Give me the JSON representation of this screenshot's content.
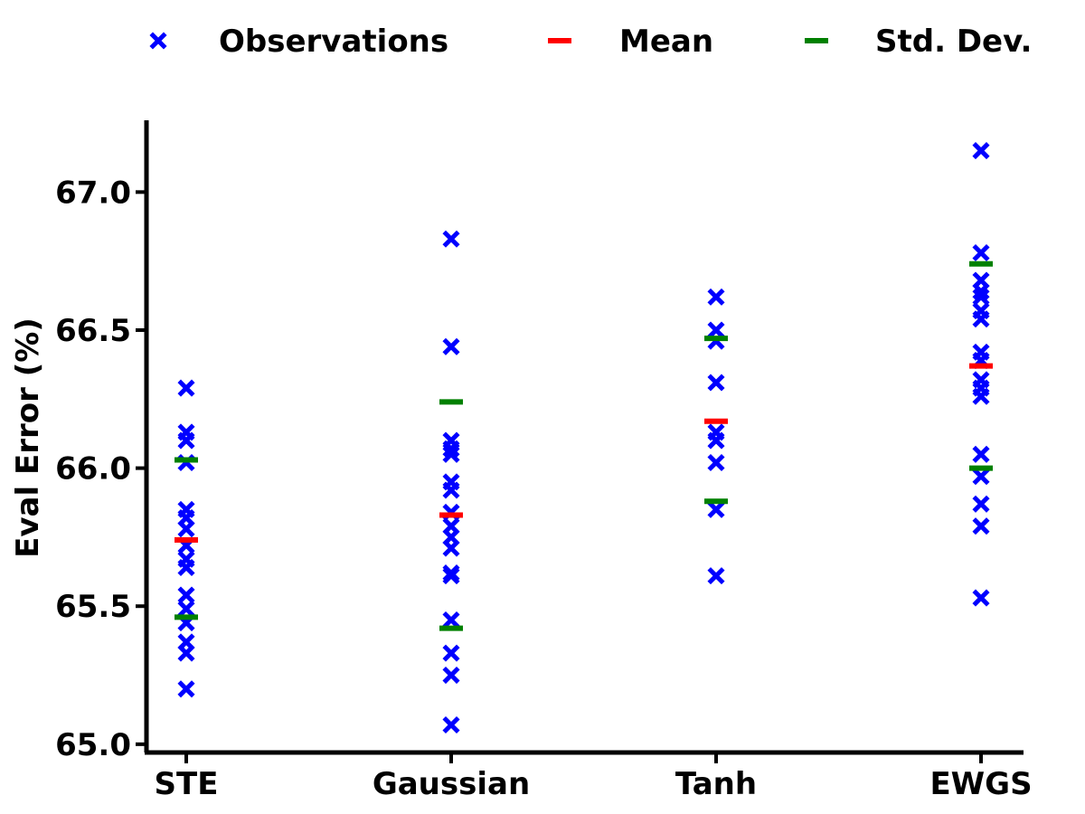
{
  "chart_data": {
    "type": "scatter",
    "categories": [
      "STE",
      "Gaussian",
      "Tanh",
      "EWGS"
    ],
    "ylabel": "Eval Error (%)",
    "ylim": [
      64.97,
      67.26
    ],
    "yticks": [
      65.0,
      65.5,
      66.0,
      66.5,
      67.0
    ],
    "ytick_labels": [
      "65.0",
      "65.5",
      "66.0",
      "66.5",
      "67.0"
    ],
    "grid": false,
    "legend_position": "top",
    "legend": [
      {
        "label": "Observations",
        "marker": "x",
        "color": "#0000ff"
      },
      {
        "label": "Mean",
        "marker": "hline",
        "color": "#ff0000"
      },
      {
        "label": "Std. Dev.",
        "marker": "hline",
        "color": "#008000"
      }
    ],
    "observations": [
      [
        66.29,
        66.13,
        66.1,
        66.02,
        65.85,
        65.82,
        65.78,
        65.72,
        65.67,
        65.64,
        65.54,
        65.49,
        65.44,
        65.37,
        65.33,
        65.2
      ],
      [
        66.83,
        66.44,
        66.1,
        66.07,
        66.05,
        65.95,
        65.92,
        65.84,
        65.79,
        65.75,
        65.71,
        65.62,
        65.61,
        65.45,
        65.33,
        65.25,
        65.07
      ],
      [
        66.62,
        66.5,
        66.46,
        66.31,
        66.13,
        66.1,
        66.02,
        65.85,
        65.61
      ],
      [
        67.15,
        66.78,
        66.68,
        66.64,
        66.62,
        66.57,
        66.54,
        66.42,
        66.39,
        66.32,
        66.29,
        66.26,
        66.05,
        65.97,
        65.87,
        65.79,
        65.53
      ]
    ],
    "mean": [
      65.74,
      65.83,
      66.17,
      66.37
    ],
    "std_upper": [
      66.03,
      66.24,
      66.47,
      66.74
    ],
    "std_lower": [
      65.46,
      65.42,
      65.88,
      66.0
    ]
  }
}
